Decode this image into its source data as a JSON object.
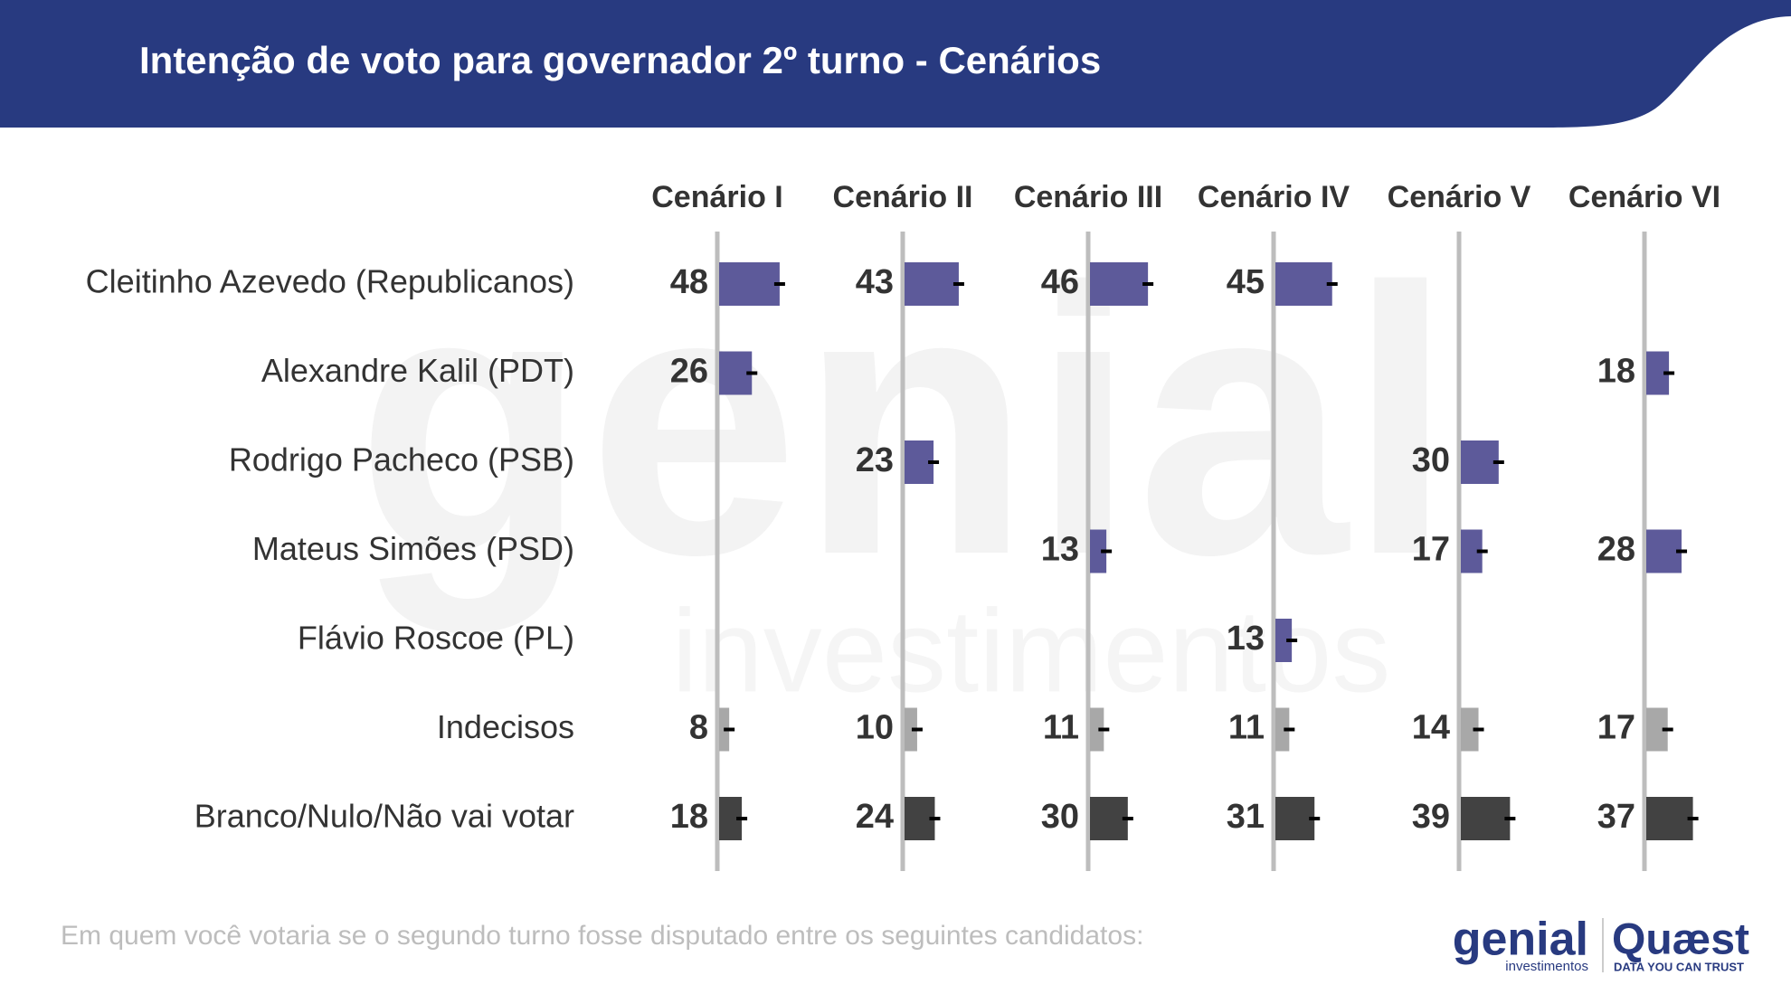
{
  "chart_data": {
    "type": "bar",
    "title": "Intenção de voto para governador 2º turno - Cenários",
    "categories": [
      "Cleitinho Azevedo (Republicanos)",
      "Alexandre Kalil (PDT)",
      "Rodrigo Pacheco (PSB)",
      "Mateus Simões (PSD)",
      "Flávio Roscoe (PL)",
      "Indecisos",
      "Branco/Nulo/Não vai votar"
    ],
    "colors": [
      "#5d5a9a",
      "#5d5a9a",
      "#5d5a9a",
      "#5d5a9a",
      "#5d5a9a",
      "#a8a8a8",
      "#424242"
    ],
    "series": [
      {
        "name": "Cenário I",
        "values": [
          48,
          26,
          null,
          null,
          null,
          8,
          18
        ]
      },
      {
        "name": "Cenário II",
        "values": [
          43,
          null,
          23,
          null,
          null,
          10,
          24
        ]
      },
      {
        "name": "Cenário III",
        "values": [
          46,
          null,
          null,
          13,
          null,
          11,
          30
        ]
      },
      {
        "name": "Cenário IV",
        "values": [
          45,
          null,
          null,
          null,
          13,
          11,
          31
        ]
      },
      {
        "name": "Cenário V",
        "values": [
          null,
          null,
          30,
          17,
          null,
          14,
          39
        ]
      },
      {
        "name": "Cenário VI",
        "values": [
          null,
          18,
          null,
          28,
          null,
          17,
          37
        ]
      }
    ],
    "footnote": "Em quem você votaria se o segundo turno fosse disputado entre os seguintes candidatos:"
  },
  "watermark": {
    "word": "genial",
    "sub": "investimentos"
  },
  "branding": {
    "genial": "genial",
    "genial_sub": "investimentos",
    "quaest": "Quæst",
    "quaest_sub": "DATA YOU CAN TRUST"
  }
}
